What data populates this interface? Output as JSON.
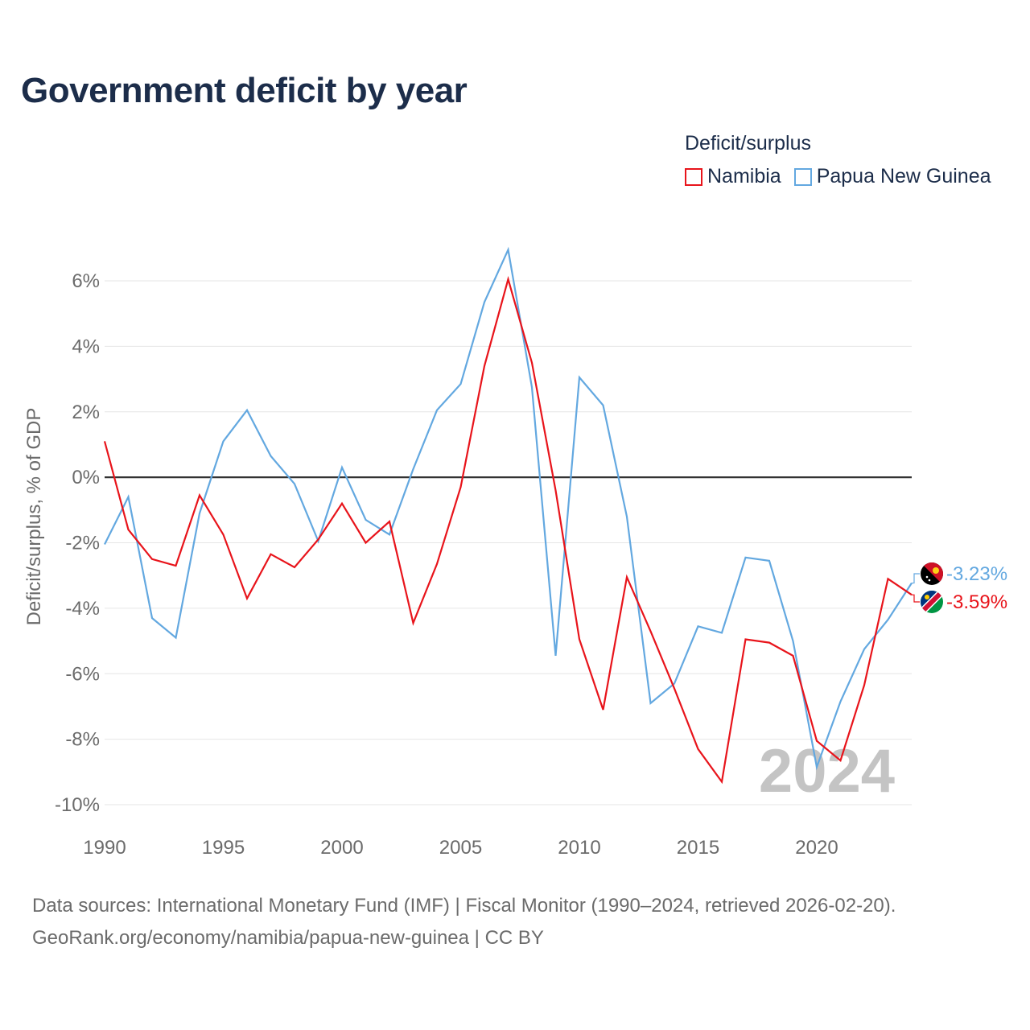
{
  "title": "Government deficit by year",
  "legend": {
    "title": "Deficit/surplus",
    "items": [
      {
        "name": "Namibia",
        "color": "#e8141b"
      },
      {
        "name": "Papua New Guinea",
        "color": "#63a8e0"
      }
    ]
  },
  "chart_data": {
    "type": "line",
    "title": "Government deficit by year",
    "xlabel": "",
    "ylabel": "Deficit/surplus, % of GDP",
    "xlim": [
      1990,
      2024
    ],
    "ylim": [
      -10,
      6.8
    ],
    "yticks": [
      6,
      4,
      2,
      0,
      -2,
      -4,
      -6,
      -8,
      -10
    ],
    "ytick_labels": [
      "6%",
      "4%",
      "2%",
      "0%",
      "-2%",
      "-4%",
      "-6%",
      "-8%",
      "-10%"
    ],
    "xticks": [
      1990,
      1995,
      2000,
      2005,
      2010,
      2015,
      2020
    ],
    "xtick_labels": [
      "1990",
      "1995",
      "2000",
      "2005",
      "2010",
      "2015",
      "2020"
    ],
    "grid": true,
    "zero_line": true,
    "x": [
      1990,
      1991,
      1992,
      1993,
      1994,
      1995,
      1996,
      1997,
      1998,
      1999,
      2000,
      2001,
      2002,
      2003,
      2004,
      2005,
      2006,
      2007,
      2008,
      2009,
      2010,
      2011,
      2012,
      2013,
      2014,
      2015,
      2016,
      2017,
      2018,
      2019,
      2020,
      2021,
      2022,
      2023,
      2024
    ],
    "series": [
      {
        "name": "Namibia",
        "color": "#e8141b",
        "values": [
          1.1,
          -1.6,
          -2.5,
          -2.7,
          -0.55,
          -1.75,
          -3.7,
          -2.35,
          -2.75,
          -1.9,
          -0.8,
          -2.0,
          -1.35,
          -4.45,
          -2.65,
          -0.3,
          3.4,
          6.05,
          3.5,
          -0.4,
          -4.95,
          -7.1,
          -3.05,
          -4.7,
          -6.45,
          -8.3,
          -9.3,
          -4.95,
          -5.05,
          -5.45,
          -8.05,
          -8.65,
          -6.35,
          -3.1,
          -3.59
        ],
        "end_label": "-3.59%"
      },
      {
        "name": "Papua New Guinea",
        "color": "#63a8e0",
        "values": [
          -2.05,
          -0.6,
          -4.3,
          -4.9,
          -1.1,
          1.1,
          2.05,
          0.65,
          -0.2,
          -1.95,
          0.3,
          -1.3,
          -1.75,
          0.25,
          2.05,
          2.85,
          5.35,
          6.95,
          2.75,
          -5.45,
          3.05,
          2.2,
          -1.2,
          -6.9,
          -6.3,
          -4.55,
          -4.75,
          -2.45,
          -2.55,
          -5.0,
          -8.85,
          -6.85,
          -5.25,
          -4.35,
          -3.23
        ],
        "end_label": "-3.23%"
      }
    ],
    "watermark_year": "2024"
  },
  "footer": {
    "line1": "Data sources: International Monetary Fund (IMF) | Fiscal Monitor (1990–2024, retrieved 2026-02-20).",
    "line2": "GeoRank.org/economy/namibia/papua-new-guinea | CC BY"
  }
}
